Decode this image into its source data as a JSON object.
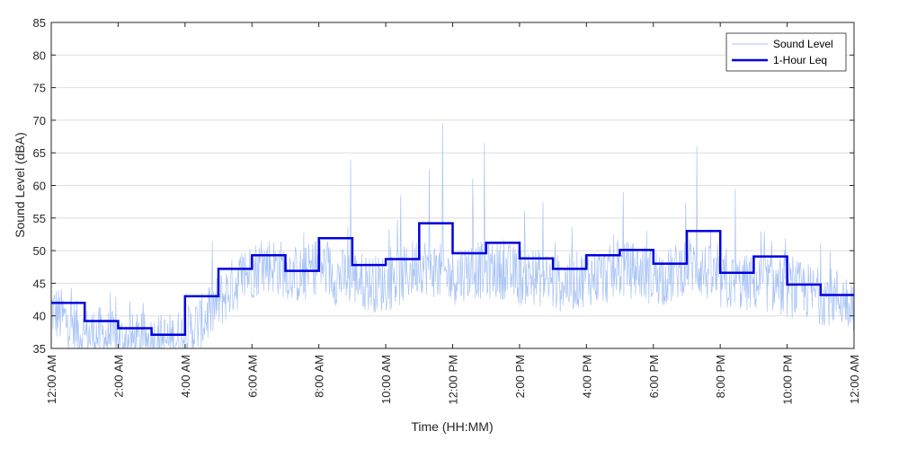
{
  "chart_data": {
    "type": "line",
    "title": "",
    "xlabel": "Time (HH:MM)",
    "ylabel": "Sound Level (dBA)",
    "ylim": [
      35,
      85
    ],
    "yticks": [
      35,
      40,
      45,
      50,
      55,
      60,
      65,
      70,
      75,
      80,
      85
    ],
    "xlim_hours": [
      0,
      24
    ],
    "xticks": [
      {
        "hour": 0,
        "label": "12:00 AM"
      },
      {
        "hour": 2,
        "label": "2:00 AM"
      },
      {
        "hour": 4,
        "label": "4:00 AM"
      },
      {
        "hour": 6,
        "label": "6:00 AM"
      },
      {
        "hour": 8,
        "label": "8:00 AM"
      },
      {
        "hour": 10,
        "label": "10:00 AM"
      },
      {
        "hour": 12,
        "label": "12:00 PM"
      },
      {
        "hour": 14,
        "label": "2:00 PM"
      },
      {
        "hour": 16,
        "label": "4:00 PM"
      },
      {
        "hour": 18,
        "label": "6:00 PM"
      },
      {
        "hour": 20,
        "label": "8:00 PM"
      },
      {
        "hour": 22,
        "label": "10:00 PM"
      },
      {
        "hour": 24,
        "label": "12:00 AM"
      }
    ],
    "grid": "horizontal",
    "legend_position": "top-right",
    "series": [
      {
        "name": "Sound Level",
        "color": "#a9c4f5",
        "style": "thin-noisy",
        "x_hours": [
          0,
          0.5,
          1,
          1.5,
          2,
          2.5,
          3,
          3.5,
          4,
          4.5,
          5,
          5.5,
          6,
          6.5,
          7,
          7.5,
          8,
          8.5,
          9,
          9.5,
          10,
          10.5,
          11,
          11.5,
          12,
          12.5,
          13,
          13.5,
          14,
          14.5,
          15,
          15.5,
          16,
          16.5,
          17,
          17.5,
          18,
          18.5,
          19,
          19.5,
          20,
          20.5,
          21,
          21.5,
          22,
          22.5,
          23,
          23.5,
          24
        ],
        "values": [
          41,
          39,
          37,
          37,
          36,
          36,
          36,
          36,
          37,
          39,
          42,
          45,
          47,
          48,
          47,
          46,
          48,
          46,
          46,
          45,
          45,
          46,
          48,
          47,
          46,
          47,
          47,
          47,
          46,
          46,
          45,
          45,
          46,
          46,
          47,
          47,
          46,
          46,
          48,
          47,
          45,
          45,
          45,
          45,
          44,
          44,
          43,
          43,
          42
        ],
        "peaks": [
          {
            "hour": 8.95,
            "value": 64
          },
          {
            "hour": 11.3,
            "value": 62.5
          },
          {
            "hour": 11.7,
            "value": 69.5
          },
          {
            "hour": 12.95,
            "value": 66.5
          },
          {
            "hour": 12.6,
            "value": 61
          },
          {
            "hour": 19.3,
            "value": 66
          },
          {
            "hour": 20.45,
            "value": 59.5
          },
          {
            "hour": 17.1,
            "value": 59
          },
          {
            "hour": 10.45,
            "value": 58.5
          },
          {
            "hour": 14.7,
            "value": 57.5
          }
        ]
      },
      {
        "name": "1-Hour Leq",
        "color": "#0000e0",
        "style": "step",
        "hours": [
          0,
          1,
          2,
          3,
          4,
          5,
          6,
          7,
          8,
          9,
          10,
          11,
          12,
          13,
          14,
          15,
          16,
          17,
          18,
          19,
          20,
          21,
          22,
          23
        ],
        "values": [
          42,
          39.2,
          38.1,
          37.1,
          43,
          47.2,
          49.3,
          46.9,
          51.9,
          47.8,
          48.7,
          54.2,
          49.6,
          51.2,
          48.8,
          47.2,
          49.3,
          50.1,
          48,
          53,
          46.6,
          49.1,
          44.8,
          43.2
        ]
      }
    ]
  }
}
